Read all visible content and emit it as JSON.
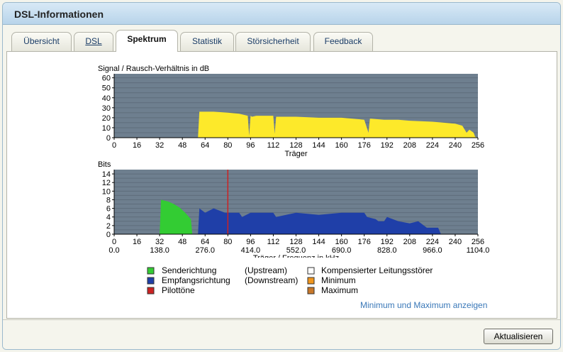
{
  "window": {
    "title": "DSL-Informationen"
  },
  "tabs": [
    {
      "label": "Übersicht",
      "active": false
    },
    {
      "label": "DSL",
      "active": false
    },
    {
      "label": "Spektrum",
      "active": true
    },
    {
      "label": "Statistik",
      "active": false
    },
    {
      "label": "Störsicherheit",
      "active": false
    },
    {
      "label": "Feedback",
      "active": false
    }
  ],
  "colors": {
    "plot_bg": "#6e7f8f",
    "snr_fill": "#fde92a",
    "upstream": "#33cc33",
    "downstream": "#1f3fa8",
    "pilot": "#cc2222",
    "compensated": "#ffffff",
    "minimum": "#f0961e",
    "maximum": "#c8782a"
  },
  "chart_data": [
    {
      "type": "area",
      "title": "Signal / Rausch-Verhältnis in dB",
      "xlabel": "Träger",
      "ylabel": "",
      "xlim": [
        0,
        256
      ],
      "ylim": [
        0,
        64
      ],
      "yticks": [
        0,
        10,
        20,
        30,
        40,
        50,
        60
      ],
      "xticks": [
        0,
        16,
        32,
        48,
        64,
        80,
        96,
        112,
        128,
        144,
        160,
        176,
        192,
        208,
        224,
        240,
        256
      ],
      "grid": true,
      "series": [
        {
          "x": [
            59,
            60,
            70,
            80,
            88,
            94,
            95,
            96,
            97,
            100,
            110,
            112,
            113,
            114,
            128,
            144,
            160,
            176,
            179,
            180,
            181,
            190,
            192,
            200,
            208,
            224,
            232,
            240,
            245,
            248,
            250,
            253,
            254,
            256
          ],
          "y": [
            0,
            26,
            26,
            25,
            24,
            22,
            2,
            22,
            21,
            22,
            22,
            22,
            4,
            21,
            21,
            20,
            20,
            18,
            5,
            19,
            19,
            18,
            18,
            18,
            17,
            16,
            15,
            14,
            12,
            5,
            8,
            5,
            1,
            0
          ]
        }
      ]
    },
    {
      "type": "area",
      "title": "Bits",
      "xlabel": "Träger / Frequenz in kHz",
      "ylabel": "",
      "xlim": [
        0,
        256
      ],
      "ylim": [
        0,
        15
      ],
      "yticks": [
        0,
        2,
        4,
        6,
        8,
        10,
        12,
        14
      ],
      "xticks": [
        0,
        16,
        32,
        48,
        64,
        80,
        96,
        112,
        128,
        144,
        160,
        176,
        192,
        208,
        224,
        240,
        256
      ],
      "secondary_xticks": [
        "0.0",
        "138.0",
        "276.0",
        "414.0",
        "552.0",
        "690.0",
        "828.0",
        "966.0",
        "1104.0"
      ],
      "grid": true,
      "series": [
        {
          "name": "Senderichtung",
          "x": [
            32,
            33,
            38,
            42,
            46,
            50,
            54,
            55
          ],
          "y": [
            0,
            8,
            7.6,
            7,
            6.2,
            5,
            3.5,
            0
          ]
        },
        {
          "name": "Empfangsrichtung",
          "x": [
            59,
            60,
            64,
            70,
            78,
            80,
            88,
            90,
            96,
            100,
            112,
            114,
            128,
            144,
            160,
            170,
            176,
            178,
            184,
            186,
            190,
            192,
            200,
            208,
            214,
            220,
            228,
            230
          ],
          "y": [
            0,
            6,
            5,
            6,
            5,
            5,
            5,
            4,
            5,
            5,
            5,
            4,
            5,
            4.5,
            5,
            5,
            5,
            4,
            3.5,
            3,
            3,
            4,
            3,
            2.5,
            3,
            1.5,
            1.5,
            0
          ]
        }
      ],
      "pilot_tone": {
        "name": "Pilottöne",
        "x": 80,
        "y": 15
      }
    }
  ],
  "legend": [
    {
      "label": "Senderichtung",
      "direction": "(Upstream)",
      "color_key": "upstream"
    },
    {
      "label": "Empfangsrichtung",
      "direction": "(Downstream)",
      "color_key": "downstream"
    },
    {
      "label": "Pilottöne",
      "direction": "",
      "color_key": "pilot"
    },
    {
      "label": "Kompensierter Leitungsstörer",
      "color_key": "compensated"
    },
    {
      "label": "Minimum",
      "color_key": "minimum"
    },
    {
      "label": "Maximum",
      "color_key": "maximum"
    }
  ],
  "links": {
    "minmax": "Minimum und Maximum anzeigen"
  },
  "buttons": {
    "refresh": "Aktualisieren"
  }
}
